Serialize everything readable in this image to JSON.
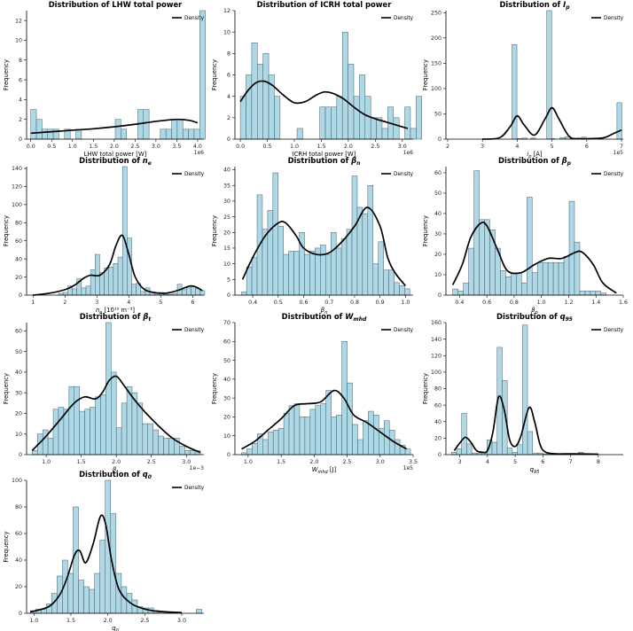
{
  "figure": {
    "legend_label": "Density"
  },
  "colors": {
    "bar": "#add8e6",
    "bar_edge": "#4d5a66",
    "kde": "#000000"
  },
  "chart_data": [
    {
      "id": "lhw",
      "type": "histogram",
      "title": "Distribution of LHW total power",
      "xlabel": "LHW total power [W]",
      "ylabel": "Frequency",
      "offset_label": "1e6",
      "bin_start": 0.0,
      "bin_width": 0.135,
      "values": [
        3,
        2,
        1,
        1,
        1,
        0,
        1,
        0,
        1,
        0,
        0,
        0,
        0,
        0,
        0,
        2,
        1,
        0,
        0,
        3,
        3,
        0,
        0,
        1,
        1,
        2,
        2,
        1,
        1,
        1,
        13,
        0
      ],
      "xlim": [
        -0.1,
        4.15
      ],
      "ylim": [
        0,
        13
      ],
      "xticks": [
        0.0,
        0.5,
        1.0,
        1.5,
        2.0,
        2.5,
        3.0,
        3.5,
        4.0
      ],
      "xtick_labels": [
        "0.0",
        "0.5",
        "1.0",
        "1.5",
        "2.0",
        "2.5",
        "3.0",
        "3.5",
        "4.0"
      ],
      "yticks": [
        0,
        2,
        4,
        6,
        8,
        10,
        12
      ],
      "ytick_labels": [
        "0",
        "2",
        "4",
        "6",
        "8",
        "10",
        "12"
      ],
      "kde": {
        "x": [
          0,
          0.5,
          1,
          1.5,
          2,
          2.5,
          3,
          3.5,
          3.8,
          4.0
        ],
        "y": [
          0.6,
          0.75,
          0.9,
          1.05,
          1.25,
          1.5,
          1.8,
          2.0,
          1.9,
          1.65
        ]
      }
    },
    {
      "id": "icrh",
      "type": "histogram",
      "title": "Distribution of ICRH total power",
      "xlabel": "ICRH total power [W]",
      "ylabel": "Frequency",
      "offset_label": "1e6",
      "bin_start": 0.0,
      "bin_width": 0.105,
      "values": [
        4,
        6,
        9,
        7,
        8,
        6,
        4,
        0,
        0,
        0,
        1,
        0,
        0,
        0,
        3,
        3,
        3,
        4,
        10,
        7,
        4,
        6,
        4,
        2,
        2,
        1,
        3,
        2,
        0,
        3,
        1,
        4
      ],
      "xlim": [
        -0.1,
        3.2
      ],
      "ylim": [
        0,
        12
      ],
      "xticks": [
        0.0,
        0.5,
        1.0,
        1.5,
        2.0,
        2.5,
        3.0
      ],
      "xtick_labels": [
        "0.0",
        "0.5",
        "1.0",
        "1.5",
        "2.0",
        "2.5",
        "3.0"
      ],
      "yticks": [
        0,
        2,
        4,
        6,
        8,
        10,
        12
      ],
      "ytick_labels": [
        "0",
        "2",
        "4",
        "6",
        "8",
        "10",
        "12"
      ],
      "kde": {
        "x": [
          0,
          0.15,
          0.3,
          0.45,
          0.6,
          0.8,
          1.0,
          1.2,
          1.4,
          1.55,
          1.7,
          1.9,
          2.1,
          2.3,
          2.5,
          2.7,
          2.9,
          3.1
        ],
        "y": [
          3.5,
          4.6,
          5.3,
          5.4,
          5.0,
          4.1,
          3.4,
          3.5,
          4.1,
          4.4,
          4.3,
          3.8,
          3.0,
          2.3,
          1.9,
          1.6,
          1.3,
          1.0
        ]
      }
    },
    {
      "id": "ip",
      "type": "histogram",
      "title": "Distribution of ",
      "title_math": "I",
      "title_sub": "p",
      "xlabel": "i",
      "xlabel_sub": "p",
      "xlabel_unit": "[A]",
      "ylabel": "Frequency",
      "offset_label": "1e5",
      "bin_start": 2.05,
      "bin_width": 0.16,
      "values": [
        0,
        0,
        0,
        0,
        0,
        0,
        0,
        0,
        0,
        0,
        0,
        0,
        1,
        2,
        0,
        0,
        0,
        0,
        1,
        0,
        0,
        1,
        0,
        0,
        0,
        0,
        0,
        0,
        0,
        0,
        0,
        0
      ],
      "spikes": [
        {
          "x": 3.92,
          "v": 187
        },
        {
          "x": 4.46,
          "v": 2
        },
        {
          "x": 4.92,
          "v": 254
        },
        {
          "x": 5.3,
          "v": 3
        },
        {
          "x": 5.46,
          "v": 5
        },
        {
          "x": 5.92,
          "v": 4
        },
        {
          "x": 6.4,
          "v": 2
        },
        {
          "x": 6.94,
          "v": 72
        }
      ],
      "xlim": [
        1.95,
        7.05
      ],
      "ylim": [
        0,
        254
      ],
      "xticks": [
        2,
        3,
        4,
        5,
        6,
        7
      ],
      "xtick_labels": [
        "2",
        "3",
        "4",
        "5",
        "6",
        "7"
      ],
      "yticks": [
        0,
        50,
        100,
        150,
        200,
        250
      ],
      "ytick_labels": [
        "0",
        "50",
        "100",
        "150",
        "200",
        "250"
      ],
      "kde": {
        "x": [
          3.0,
          3.5,
          3.8,
          4.0,
          4.2,
          4.5,
          4.8,
          5.0,
          5.2,
          5.5,
          5.8,
          6.1,
          6.5,
          6.8,
          7.0
        ],
        "y": [
          0,
          3,
          25,
          46,
          28,
          8,
          40,
          62,
          40,
          5,
          1,
          1,
          3,
          12,
          18
        ]
      }
    },
    {
      "id": "ne",
      "type": "histogram",
      "title": "Distribution of ",
      "title_math": "n",
      "title_sub": "e",
      "xlabel": "n",
      "xlabel_sub": "e",
      "xlabel_unit": "[10¹⁹ m⁻³]",
      "ylabel": "Frequency",
      "bin_start": 1.8,
      "bin_width": 0.143,
      "values": [
        2,
        3,
        10,
        7,
        18,
        8,
        10,
        28,
        45,
        25,
        30,
        31,
        35,
        42,
        142,
        63,
        12,
        13,
        4,
        8,
        3,
        2,
        3,
        1,
        1,
        2,
        12,
        6,
        8,
        10,
        7,
        5
      ],
      "xlim": [
        0.8,
        6.35
      ],
      "ylim": [
        0,
        142
      ],
      "xticks": [
        1,
        2,
        3,
        4,
        5,
        6
      ],
      "xtick_labels": [
        "1",
        "2",
        "3",
        "4",
        "5",
        "6"
      ],
      "yticks": [
        0,
        20,
        40,
        60,
        80,
        100,
        120,
        140
      ],
      "ytick_labels": [
        "0",
        "20",
        "40",
        "60",
        "80",
        "100",
        "120",
        "140"
      ],
      "kde": {
        "x": [
          1.0,
          1.5,
          2.0,
          2.3,
          2.6,
          2.8,
          3.1,
          3.4,
          3.6,
          3.8,
          4.0,
          4.2,
          4.5,
          5.0,
          5.3,
          5.6,
          5.9,
          6.1,
          6.3
        ],
        "y": [
          0,
          2,
          6,
          11,
          19,
          22,
          22,
          34,
          55,
          66,
          45,
          20,
          6,
          2,
          3,
          6,
          10,
          9,
          5
        ]
      }
    },
    {
      "id": "bn",
      "type": "histogram",
      "title": "Distribution of ",
      "title_math": "β",
      "title_sub": "n",
      "xlabel": "β",
      "xlabel_sub": "n",
      "ylabel": "Frequency",
      "bin_start": 0.355,
      "bin_width": 0.0207,
      "values": [
        1,
        9,
        12,
        32,
        21,
        27,
        39,
        22,
        13,
        14,
        14,
        20,
        13,
        14,
        15,
        16,
        13,
        20,
        15,
        18,
        21,
        38,
        28,
        26,
        35,
        10,
        17,
        8,
        8,
        4,
        3,
        2
      ],
      "xlim": [
        0.33,
        1.03
      ],
      "ylim": [
        0,
        41
      ],
      "xticks": [
        0.4,
        0.5,
        0.6,
        0.7,
        0.8,
        0.9,
        1.0
      ],
      "xtick_labels": [
        "0.4",
        "0.5",
        "0.6",
        "0.7",
        "0.8",
        "0.9",
        "1.0"
      ],
      "yticks": [
        0,
        5,
        10,
        15,
        20,
        25,
        30,
        35,
        40
      ],
      "ytick_labels": [
        "0",
        "5",
        "10",
        "15",
        "20",
        "25",
        "30",
        "35",
        "40"
      ],
      "kde": {
        "x": [
          0.36,
          0.4,
          0.45,
          0.5,
          0.53,
          0.57,
          0.6,
          0.65,
          0.7,
          0.75,
          0.8,
          0.85,
          0.9,
          0.93,
          0.96,
          1.0
        ],
        "y": [
          5,
          12,
          19,
          23,
          23,
          19,
          15,
          13,
          13.5,
          17,
          22,
          28,
          22,
          12,
          7,
          3
        ]
      }
    },
    {
      "id": "bp",
      "type": "histogram",
      "title": "Distribution of ",
      "title_math": "β",
      "title_sub": "p",
      "xlabel": "β",
      "xlabel_sub": "p",
      "ylabel": "Frequency",
      "bin_start": 0.35,
      "bin_width": 0.0388,
      "values": [
        3,
        2,
        6,
        23,
        61,
        37,
        37,
        32,
        23,
        12,
        9,
        11,
        11,
        6,
        48,
        11,
        16,
        16,
        16,
        16,
        16,
        19,
        46,
        26,
        2,
        2,
        2,
        2,
        1,
        0,
        0,
        0
      ],
      "xlim": [
        0.3,
        1.6
      ],
      "ylim": [
        0,
        63
      ],
      "xticks": [
        0.4,
        0.6,
        0.8,
        1.0,
        1.2,
        1.4,
        1.6
      ],
      "xtick_labels": [
        "0.4",
        "0.6",
        "0.8",
        "1.0",
        "1.2",
        "1.4",
        "1.6"
      ],
      "yticks": [
        0,
        10,
        20,
        30,
        40,
        50,
        60
      ],
      "ytick_labels": [
        "0",
        "10",
        "20",
        "30",
        "40",
        "50",
        "60"
      ],
      "kde": {
        "x": [
          0.35,
          0.42,
          0.48,
          0.55,
          0.6,
          0.68,
          0.75,
          0.85,
          0.95,
          1.05,
          1.15,
          1.25,
          1.3,
          1.38,
          1.45,
          1.55
        ],
        "y": [
          5,
          15,
          28,
          35,
          34,
          22,
          12,
          11,
          15,
          18,
          18,
          21,
          21,
          15,
          6,
          1
        ]
      }
    },
    {
      "id": "bt",
      "type": "histogram",
      "title": "Distribution of ",
      "title_math": "β",
      "title_sub": "t",
      "xlabel": "β",
      "xlabel_sub": "t",
      "ylabel": "Frequency",
      "offset_label": "1e−3",
      "bin_start": 0.8,
      "bin_width": 0.075,
      "values": [
        2,
        10,
        12,
        8,
        22,
        23,
        22,
        33,
        33,
        21,
        22,
        23,
        28,
        29,
        64,
        40,
        13,
        25,
        33,
        30,
        25,
        15,
        15,
        12,
        9,
        8,
        8,
        8,
        4,
        2,
        2,
        2
      ],
      "xlim": [
        0.72,
        3.25
      ],
      "ylim": [
        0,
        64
      ],
      "xticks": [
        1.0,
        1.5,
        2.0,
        2.5,
        3.0
      ],
      "xtick_labels": [
        "1.0",
        "1.5",
        "2.0",
        "2.5",
        "3.0"
      ],
      "yticks": [
        0,
        10,
        20,
        30,
        40,
        50,
        60
      ],
      "ytick_labels": [
        "0",
        "10",
        "20",
        "30",
        "40",
        "50",
        "60"
      ],
      "kde": {
        "x": [
          0.8,
          1.0,
          1.2,
          1.4,
          1.55,
          1.7,
          1.8,
          1.9,
          2.0,
          2.1,
          2.25,
          2.4,
          2.6,
          2.8,
          3.0,
          3.2
        ],
        "y": [
          2,
          9,
          17,
          25,
          28,
          27,
          30,
          36,
          38,
          34,
          27,
          21,
          14,
          8,
          4,
          1
        ]
      }
    },
    {
      "id": "wmhd",
      "type": "histogram",
      "title": "Distribution of ",
      "title_math": "W",
      "title_sub": "mhd",
      "xlabel": "W",
      "xlabel_sub": "mhd",
      "xlabel_unit": "[J]",
      "ylabel": "Frequency",
      "offset_label": "1e5",
      "bin_start": 0.9,
      "bin_width": 0.08,
      "values": [
        1,
        3,
        6,
        11,
        8,
        12,
        13,
        14,
        22,
        26,
        27,
        20,
        20,
        24,
        26,
        27,
        34,
        20,
        21,
        60,
        38,
        16,
        8,
        18,
        23,
        21,
        14,
        18,
        13,
        8,
        5,
        3
      ],
      "xlim": [
        0.8,
        3.5
      ],
      "ylim": [
        0,
        70
      ],
      "xticks": [
        1.0,
        1.5,
        2.0,
        2.5,
        3.0,
        3.5
      ],
      "xtick_labels": [
        "1.0",
        "1.5",
        "2.0",
        "2.5",
        "3.0",
        "3.5"
      ],
      "yticks": [
        0,
        10,
        20,
        30,
        40,
        50,
        60,
        70
      ],
      "ytick_labels": [
        "0",
        "10",
        "20",
        "30",
        "40",
        "50",
        "60",
        "70"
      ],
      "kde": {
        "x": [
          0.9,
          1.1,
          1.3,
          1.5,
          1.7,
          1.9,
          2.1,
          2.3,
          2.45,
          2.6,
          2.8,
          3.0,
          3.2,
          3.4
        ],
        "y": [
          3,
          7,
          13,
          19,
          26,
          27,
          28,
          34,
          30,
          21,
          17,
          12,
          7,
          3
        ]
      }
    },
    {
      "id": "q95",
      "type": "histogram",
      "title": "Distribution of ",
      "title_math": "q",
      "title_sub": "95",
      "xlabel": "q",
      "xlabel_sub": "95",
      "ylabel": "Frequency",
      "bin_start": 2.7,
      "bin_width": 0.183,
      "values": [
        3,
        7,
        50,
        13,
        2,
        2,
        2,
        18,
        15,
        130,
        90,
        8,
        3,
        12,
        157,
        28,
        2,
        2,
        1,
        1,
        1,
        1,
        1,
        1,
        1,
        3,
        1,
        1,
        0,
        0,
        0,
        0
      ],
      "xlim": [
        2.5,
        8.9
      ],
      "ylim": [
        0,
        160
      ],
      "xticks": [
        3,
        4,
        5,
        6,
        7,
        8
      ],
      "xtick_labels": [
        "3",
        "4",
        "5",
        "6",
        "7",
        "8"
      ],
      "yticks": [
        0,
        20,
        40,
        60,
        80,
        100,
        120,
        140,
        160
      ],
      "ytick_labels": [
        "0",
        "20",
        "40",
        "60",
        "80",
        "100",
        "120",
        "140",
        "160"
      ],
      "kde": {
        "x": [
          2.8,
          3.0,
          3.2,
          3.4,
          3.6,
          3.8,
          4.0,
          4.2,
          4.4,
          4.6,
          4.8,
          5.0,
          5.2,
          5.5,
          5.7,
          5.9,
          6.1,
          6.5,
          7.0,
          8.0
        ],
        "y": [
          5,
          14,
          21,
          15,
          5,
          3,
          5,
          28,
          70,
          55,
          18,
          10,
          22,
          57,
          40,
          12,
          3,
          1,
          1,
          0.5
        ]
      }
    },
    {
      "id": "q0",
      "type": "histogram",
      "title": "Distribution of ",
      "title_math": "q",
      "title_sub": "0",
      "xlabel": "q",
      "xlabel_sub": "0",
      "ylabel": "Frequency",
      "bin_start": 0.95,
      "bin_width": 0.0725,
      "values": [
        2,
        3,
        3,
        7,
        15,
        28,
        40,
        30,
        80,
        25,
        20,
        18,
        30,
        55,
        100,
        75,
        30,
        20,
        15,
        10,
        5,
        4,
        4,
        2,
        1,
        1,
        1,
        1,
        0,
        0,
        0,
        3
      ],
      "xlim": [
        0.9,
        3.3
      ],
      "ylim": [
        0,
        100
      ],
      "xticks": [
        1.0,
        1.5,
        2.0,
        2.5,
        3.0
      ],
      "xtick_labels": [
        "1.0",
        "1.5",
        "2.0",
        "2.5",
        "3.0"
      ],
      "yticks": [
        0,
        20,
        40,
        60,
        80,
        100
      ],
      "ytick_labels": [
        "0",
        "20",
        "40",
        "60",
        "80",
        "100"
      ],
      "kde": {
        "x": [
          0.95,
          1.2,
          1.35,
          1.45,
          1.55,
          1.62,
          1.7,
          1.8,
          1.9,
          1.97,
          2.05,
          2.15,
          2.3,
          2.45,
          2.6,
          2.8,
          3.0
        ],
        "y": [
          1,
          5,
          14,
          27,
          44,
          47,
          38,
          52,
          73,
          67,
          40,
          18,
          8,
          4,
          2,
          1,
          0.5
        ]
      }
    }
  ]
}
